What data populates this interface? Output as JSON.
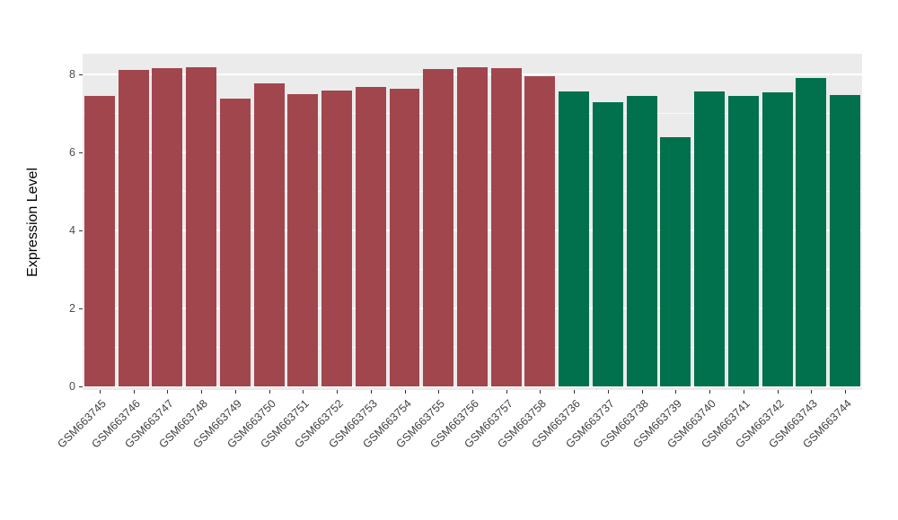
{
  "chart_data": {
    "type": "bar",
    "title": "",
    "xlabel": "",
    "ylabel": "Expression Level",
    "ylim": [
      0,
      8.6
    ],
    "yticks": [
      0,
      2,
      4,
      6,
      8
    ],
    "yticks_minor": [
      1,
      3,
      5,
      7
    ],
    "grid": true,
    "legend": "none",
    "categories": [
      "GSM663745",
      "GSM663746",
      "GSM663747",
      "GSM663748",
      "GSM663749",
      "GSM663750",
      "GSM663751",
      "GSM663752",
      "GSM663753",
      "GSM663754",
      "GSM663755",
      "GSM663756",
      "GSM663757",
      "GSM663758",
      "GSM663736",
      "GSM663737",
      "GSM663738",
      "GSM663739",
      "GSM663740",
      "GSM663741",
      "GSM663742",
      "GSM663743",
      "GSM663744"
    ],
    "values": [
      7.45,
      8.12,
      8.16,
      8.18,
      7.37,
      7.77,
      7.49,
      7.58,
      7.69,
      7.64,
      8.14,
      8.18,
      8.17,
      7.95,
      7.56,
      7.28,
      7.45,
      6.4,
      7.56,
      7.44,
      7.55,
      7.9,
      7.47
    ],
    "groups": [
      {
        "name": "GSM663745-GSM663758",
        "color": "#A2464E",
        "count": 14
      },
      {
        "name": "GSM663736-GSM663744",
        "color": "#00714C",
        "count": 9
      }
    ]
  },
  "colors": {
    "panel_background": "#EBEBEB",
    "gridline": "#FFFFFF",
    "tick_text": "#4D4D4D",
    "axis_title_text": "#000000",
    "bar_red": "#A2464E",
    "bar_green": "#00714C"
  }
}
